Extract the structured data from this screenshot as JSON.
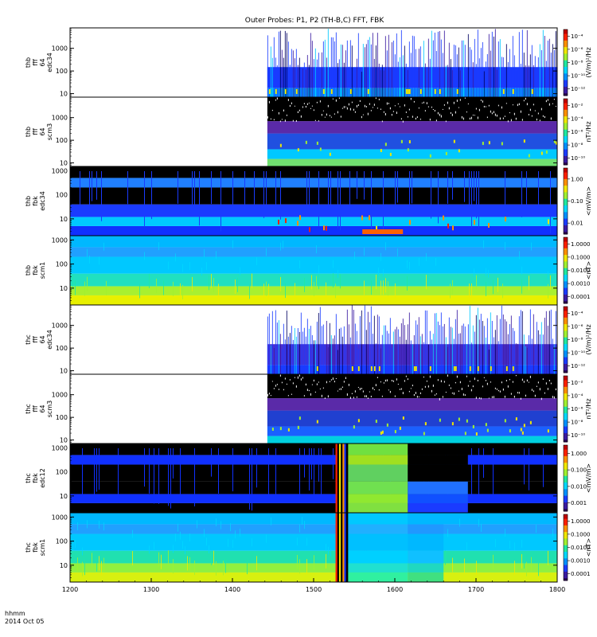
{
  "chart_data": {
    "type": "heatmap",
    "title": "Outer Probes: P1, P2 (TH-B,C) FFT, FBK",
    "x_axis": {
      "ticks": [
        "1200",
        "1300",
        "1400",
        "1500",
        "1600",
        "1700",
        "1800"
      ],
      "tick_values": [
        1200,
        1300,
        1400,
        1500,
        1600,
        1700,
        1800
      ],
      "range": [
        1200,
        1800
      ],
      "label_line1": "hhmm",
      "label_line2": "2014 Oct 05"
    },
    "panels": [
      {
        "label_lines": [
          "thb",
          "fff",
          "64",
          "edc34"
        ],
        "y_ticks": [
          "10",
          "100",
          "1000"
        ],
        "y_tick_values": [
          10,
          100,
          1000
        ],
        "y_range": [
          7,
          8000
        ],
        "cbar_ticks": [
          "10⁻⁴",
          "10⁻⁶",
          "10⁻⁸",
          "10⁻¹⁰",
          "10⁻¹²"
        ],
        "cbar_label": "(V/m)²/Hz",
        "data_start": 1443,
        "style": "fft-e",
        "bands": [
          {
            "f0": 7,
            "f1": 18,
            "value": 0.5,
            "color": "#00aaff"
          },
          {
            "f0": 18,
            "f1": 150,
            "value": 0.32,
            "color": "#1a3bff"
          },
          {
            "f0": 150,
            "f1": 8000,
            "value": 0.05,
            "color": "#ffffff"
          }
        ]
      },
      {
        "label_lines": [
          "thb",
          "fff",
          "64",
          "scm3"
        ],
        "y_ticks": [
          "10",
          "100",
          "1000"
        ],
        "y_tick_values": [
          10,
          100,
          1000
        ],
        "y_range": [
          7,
          8000
        ],
        "cbar_ticks": [
          "10⁻²",
          "10⁻⁴",
          "10⁻⁶",
          "10⁻⁸",
          "10⁻¹⁰"
        ],
        "cbar_label": "nT²/Hz",
        "data_start": 1443,
        "style": "fft-b",
        "bands": [
          {
            "f0": 7,
            "f1": 15,
            "value": 0.65,
            "color": "#70e070"
          },
          {
            "f0": 15,
            "f1": 40,
            "value": 0.45,
            "color": "#00c8ff"
          },
          {
            "f0": 40,
            "f1": 200,
            "value": 0.25,
            "color": "#2050e0"
          },
          {
            "f0": 200,
            "f1": 700,
            "value": 0.12,
            "color": "#5a2aa8"
          },
          {
            "f0": 700,
            "f1": 8000,
            "value": 0.02,
            "color": "#000000"
          }
        ]
      },
      {
        "label_lines": [
          "thb",
          "fbk",
          "edc34"
        ],
        "y_ticks": [
          "10",
          "100",
          "1000"
        ],
        "y_tick_values": [
          10,
          100,
          1000
        ],
        "y_range": [
          2,
          1500
        ],
        "cbar_ticks": [
          "1.00",
          "0.10",
          "0.01"
        ],
        "cbar_label": "<mV/m>",
        "data_start": 1200,
        "style": "fbk-e",
        "bands": [
          {
            "f0": 2,
            "f1": 5,
            "value": 0.35,
            "color": "#1030ff"
          },
          {
            "f0": 5,
            "f1": 12,
            "value": 0.5,
            "color": "#00c8ff"
          },
          {
            "f0": 12,
            "f1": 40,
            "value": 0.3,
            "color": "#1a3bff"
          },
          {
            "f0": 40,
            "f1": 200,
            "value": 0.02,
            "color": "#000000"
          },
          {
            "f0": 200,
            "f1": 500,
            "value": 0.4,
            "color": "#2080ff"
          },
          {
            "f0": 500,
            "f1": 1500,
            "value": 0.02,
            "color": "#000000"
          }
        ]
      },
      {
        "label_lines": [
          "thb",
          "fbk",
          "scm1"
        ],
        "y_ticks": [
          "10",
          "100",
          "1000"
        ],
        "y_tick_values": [
          10,
          100,
          1000
        ],
        "y_range": [
          2,
          1500
        ],
        "cbar_ticks": [
          "1.0000",
          "0.1000",
          "0.0100",
          "0.0010",
          "0.0001"
        ],
        "cbar_label": "<nT>",
        "data_start": 1200,
        "style": "fbk-b",
        "bands": [
          {
            "f0": 2,
            "f1": 5,
            "value": 0.72,
            "color": "#e8f000"
          },
          {
            "f0": 5,
            "f1": 12,
            "value": 0.62,
            "color": "#a8f030"
          },
          {
            "f0": 12,
            "f1": 40,
            "value": 0.52,
            "color": "#20e0c0"
          },
          {
            "f0": 40,
            "f1": 200,
            "value": 0.45,
            "color": "#00c8ff"
          },
          {
            "f0": 200,
            "f1": 500,
            "value": 0.38,
            "color": "#20a0ff"
          },
          {
            "f0": 500,
            "f1": 1500,
            "value": 0.42,
            "color": "#00b8ff"
          }
        ]
      },
      {
        "label_lines": [
          "thc",
          "fff",
          "64",
          "edc34"
        ],
        "y_ticks": [
          "10",
          "100",
          "1000"
        ],
        "y_tick_values": [
          10,
          100,
          1000
        ],
        "y_range": [
          7,
          8000
        ],
        "cbar_ticks": [
          "10⁻⁴",
          "10⁻⁶",
          "10⁻⁸",
          "10⁻¹⁰",
          "10⁻¹²"
        ],
        "cbar_label": "(V/m)²/Hz",
        "data_start": 1443,
        "style": "fft-e",
        "bands": [
          {
            "f0": 7,
            "f1": 18,
            "value": 0.38,
            "color": "#1a3bff"
          },
          {
            "f0": 18,
            "f1": 150,
            "value": 0.22,
            "color": "#4a30d0"
          },
          {
            "f0": 150,
            "f1": 8000,
            "value": 0.05,
            "color": "#ffffff"
          }
        ]
      },
      {
        "label_lines": [
          "thc",
          "fff",
          "64",
          "scm3"
        ],
        "y_ticks": [
          "10",
          "100",
          "1000"
        ],
        "y_tick_values": [
          10,
          100,
          1000
        ],
        "y_range": [
          7,
          8000
        ],
        "cbar_ticks": [
          "10⁻²",
          "10⁻⁴",
          "10⁻⁶",
          "10⁻⁸",
          "10⁻¹⁰"
        ],
        "cbar_label": "nT²/Hz",
        "data_start": 1443,
        "style": "fft-b",
        "bands": [
          {
            "f0": 7,
            "f1": 15,
            "value": 0.5,
            "color": "#00d0e0"
          },
          {
            "f0": 15,
            "f1": 40,
            "value": 0.38,
            "color": "#1a60ff"
          },
          {
            "f0": 40,
            "f1": 200,
            "value": 0.25,
            "color": "#2040d0"
          },
          {
            "f0": 200,
            "f1": 700,
            "value": 0.12,
            "color": "#5a2aa8"
          },
          {
            "f0": 700,
            "f1": 8000,
            "value": 0.02,
            "color": "#000000"
          }
        ]
      },
      {
        "label_lines": [
          "thc",
          "fbk",
          "edc12"
        ],
        "y_ticks": [
          "10",
          "100",
          "1000"
        ],
        "y_tick_values": [
          10,
          100,
          1000
        ],
        "y_range": [
          2,
          1500
        ],
        "cbar_ticks": [
          "1.000",
          "0.100",
          "0.010",
          "0.001"
        ],
        "cbar_label": "<mV/m>",
        "data_start": 1200,
        "style": "fbk-e2",
        "bands": [
          {
            "f0": 2,
            "f1": 5,
            "value": 0.02,
            "color": "#000000"
          },
          {
            "f0": 5,
            "f1": 12,
            "value": 0.3,
            "color": "#1030ff"
          },
          {
            "f0": 12,
            "f1": 40,
            "value": 0.02,
            "color": "#000000"
          },
          {
            "f0": 40,
            "f1": 200,
            "value": 0.02,
            "color": "#000000"
          },
          {
            "f0": 200,
            "f1": 500,
            "value": 0.3,
            "color": "#1030ff"
          },
          {
            "f0": 500,
            "f1": 1500,
            "value": 0.02,
            "color": "#000000"
          }
        ],
        "segments": [
          {
            "t0": 1540,
            "t1": 1616,
            "colors": [
              "#80e040",
              "#90e830",
              "#70e050",
              "#60d060",
              "#a0e020",
              "#70e040"
            ]
          },
          {
            "t0": 1616,
            "t1": 1690,
            "colors": [
              "#1a3bff",
              "#1050ff",
              "#2070ff",
              "#000000",
              "#000000",
              "#000000"
            ]
          }
        ],
        "burst": [
          1527,
          1542
        ]
      },
      {
        "label_lines": [
          "thc",
          "fbk",
          "scm1"
        ],
        "y_ticks": [
          "10",
          "100",
          "1000"
        ],
        "y_tick_values": [
          10,
          100,
          1000
        ],
        "y_range": [
          2,
          1500
        ],
        "cbar_ticks": [
          "1.0000",
          "0.1000",
          "0.0100",
          "0.0010",
          "0.0001"
        ],
        "cbar_label": "<nT>",
        "data_start": 1200,
        "style": "fbk-b",
        "bands": [
          {
            "f0": 2,
            "f1": 5,
            "value": 0.7,
            "color": "#d8f010"
          },
          {
            "f0": 5,
            "f1": 12,
            "value": 0.6,
            "color": "#90f040"
          },
          {
            "f0": 12,
            "f1": 40,
            "value": 0.5,
            "color": "#20e0b0"
          },
          {
            "f0": 40,
            "f1": 200,
            "value": 0.45,
            "color": "#00c8ff"
          },
          {
            "f0": 200,
            "f1": 500,
            "value": 0.38,
            "color": "#20a0ff"
          },
          {
            "f0": 500,
            "f1": 1500,
            "value": 0.42,
            "color": "#00b8ff"
          }
        ],
        "segments": [
          {
            "t0": 1542,
            "t1": 1616,
            "colors": [
              "#30f0a0",
              "#20e0d0",
              "#00d0ff",
              "#00c0ff",
              "#20b0ff",
              "#00c8ff"
            ]
          },
          {
            "t0": 1616,
            "t1": 1660,
            "colors": [
              "#40e080",
              "#20d8c0",
              "#10c0ff",
              "#00b8ff",
              "#2098ff",
              "#00b8ff"
            ]
          }
        ],
        "burst": [
          1527,
          1542
        ]
      }
    ]
  }
}
